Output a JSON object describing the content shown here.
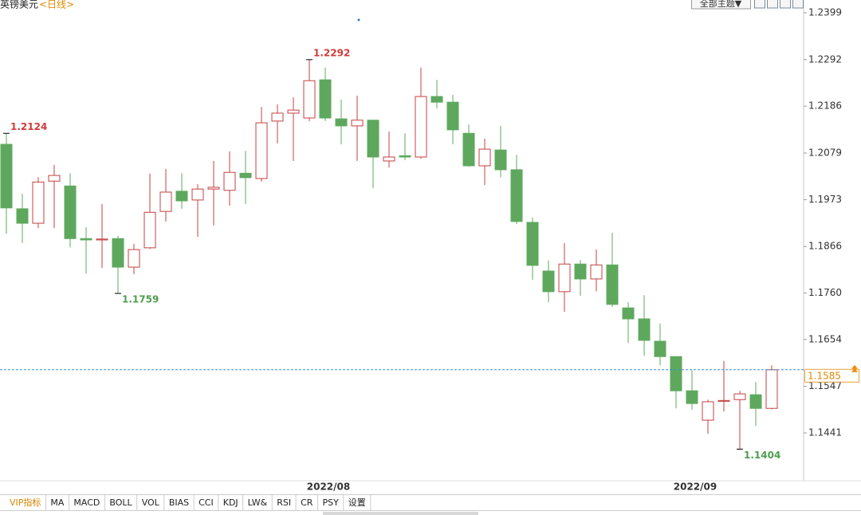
{
  "chart_data": {
    "type": "candlestick",
    "title": "英镑美元",
    "subtitle": "<日线>",
    "categories": [
      null,
      null,
      null,
      null,
      null,
      null,
      null,
      null,
      null,
      null,
      null,
      null,
      null,
      null,
      null,
      null,
      null,
      null,
      null,
      null,
      "2022/08",
      null,
      null,
      null,
      null,
      null,
      null,
      null,
      null,
      null,
      null,
      null,
      null,
      null,
      null,
      null,
      null,
      null,
      null,
      null,
      null,
      null,
      null,
      "2022/09",
      null,
      null,
      null,
      null,
      null
    ],
    "open": [
      1.2099,
      1.1952,
      1.1919,
      1.2015,
      1.2004,
      1.1884,
      1.1881,
      1.1884,
      1.1819,
      1.1863,
      1.1946,
      1.1992,
      1.1972,
      1.1997,
      1.1994,
      1.2033,
      1.2021,
      1.2152,
      1.217,
      1.2159,
      1.2246,
      1.2157,
      1.2141,
      1.2154,
      1.2061,
      1.2073,
      1.207,
      1.2208,
      1.2195,
      1.2124,
      1.205,
      1.2086,
      1.2041,
      1.1921,
      1.181,
      1.1763,
      1.1826,
      1.1792,
      1.1824,
      1.1726,
      1.1701,
      1.165,
      1.1615,
      1.1537,
      1.147,
      1.1513,
      1.1517,
      1.1528,
      1.1497
    ],
    "high": [
      1.2124,
      1.1986,
      1.2024,
      1.2052,
      1.2033,
      1.191,
      1.1963,
      1.189,
      1.1872,
      1.2032,
      1.2043,
      1.2033,
      1.2008,
      1.2061,
      1.2083,
      1.2084,
      1.2184,
      1.219,
      1.2206,
      1.2292,
      1.2274,
      1.2201,
      1.221,
      1.2154,
      1.2128,
      1.2124,
      1.2274,
      1.2246,
      1.2212,
      1.2144,
      1.2112,
      1.2141,
      1.2075,
      1.1932,
      1.1834,
      1.1874,
      1.1835,
      1.1859,
      1.1897,
      1.1739,
      1.1755,
      1.169,
      1.1615,
      1.1584,
      1.1517,
      1.1605,
      1.1537,
      1.1557,
      1.1595
    ],
    "low": [
      1.1895,
      1.1874,
      1.1908,
      1.1908,
      1.1864,
      1.1804,
      1.1817,
      1.1759,
      1.1803,
      1.1861,
      1.1923,
      1.1952,
      1.1888,
      1.1914,
      1.1959,
      1.1963,
      1.2014,
      1.2101,
      1.2061,
      1.2152,
      1.2152,
      1.2099,
      1.2061,
      1.1999,
      1.2046,
      1.2063,
      1.2066,
      1.2181,
      1.2099,
      1.2048,
      1.2006,
      1.2024,
      1.1917,
      1.179,
      1.1739,
      1.1717,
      1.1754,
      1.1764,
      1.1728,
      1.1646,
      1.1617,
      1.1595,
      1.1497,
      1.1494,
      1.1439,
      1.149,
      1.1404,
      1.1457,
      1.1495
    ],
    "close": [
      1.1954,
      1.1919,
      1.2013,
      1.2028,
      1.1884,
      1.1881,
      1.1883,
      1.1819,
      1.1859,
      1.1944,
      1.199,
      1.197,
      1.1997,
      1.2001,
      1.2035,
      1.2023,
      1.2148,
      1.217,
      1.2177,
      1.2244,
      1.2159,
      1.2141,
      1.2154,
      1.207,
      1.207,
      1.207,
      1.2208,
      1.2195,
      1.2132,
      1.205,
      1.2088,
      1.2041,
      1.1923,
      1.1823,
      1.1763,
      1.1826,
      1.1792,
      1.1824,
      1.1734,
      1.1701,
      1.1652,
      1.1615,
      1.1537,
      1.1508,
      1.1512,
      1.1515,
      1.153,
      1.1497,
      1.1585
    ],
    "up_color": "#c44040",
    "down_color": "#5ea85e",
    "high_label_color": "#d03a3a",
    "low_label_color": "#4f9e4f",
    "last_line_color": "#3a8fd6",
    "ylim": [
      1.1332,
      1.2428
    ],
    "yticks": [
      1.2399,
      1.2292,
      1.2186,
      1.2079,
      1.1973,
      1.1866,
      {
        "value": 1.176,
        "label": "1.1760"
      },
      1.1654,
      1.1547,
      1.1441
    ]
  },
  "toolbar": {
    "theme_button": "全部主题▼"
  },
  "indicator_tabs": [
    "VIP指标",
    "MA",
    "MACD",
    "BOLL",
    "VOL",
    "BIAS",
    "CCI",
    "KDJ",
    "LW&",
    "RSI",
    "CR",
    "PSY",
    "设置"
  ]
}
